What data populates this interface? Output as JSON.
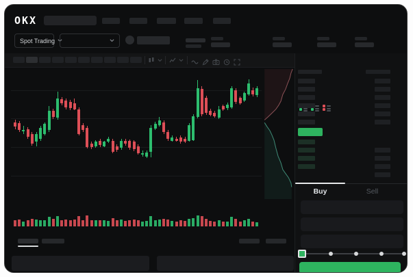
{
  "header": {
    "logo": "OKX"
  },
  "subheader": {
    "market_selector_label": "Spot Trading"
  },
  "trade_panel": {
    "tabs": [
      {
        "label": "Buy"
      },
      {
        "label": "Sell"
      }
    ]
  },
  "icons": {
    "toolbar": [
      "interval-candle-icon",
      "indicator-line-icon",
      "wave-icon",
      "draw-pencil-icon",
      "camera-icon",
      "clock-icon",
      "fullscreen-icon"
    ],
    "order_book_modes": [
      "book-all-icon",
      "book-bids-icon",
      "book-asks-icon"
    ],
    "other": [
      "chevron-down-icon",
      "slider-handle-icon"
    ]
  },
  "colors": {
    "up_green": "#2dbd6e",
    "down_red": "#dd4f57",
    "buy_button_green": "#2eb35f",
    "window_bg": "#0d0e0f",
    "depth_ask_line": "#8a5156",
    "depth_bid_line": "#3f8a76"
  },
  "chart_data": {
    "type": "candlestick",
    "title": "",
    "xlabel": "",
    "ylabel": "",
    "ylim": [
      0,
      100
    ],
    "grid": "faint-horizontal",
    "legend": "none",
    "candles_ohlc": [
      [
        58,
        60,
        52.5,
        54.5
      ],
      [
        57,
        59,
        50,
        51.5
      ],
      [
        50.5,
        55,
        48.5,
        51.5
      ],
      [
        52.5,
        54,
        44.5,
        46
      ],
      [
        48.5,
        50,
        39,
        40.5
      ],
      [
        42,
        50,
        38.5,
        48.5
      ],
      [
        44.5,
        55,
        43,
        53.5
      ],
      [
        48.5,
        58,
        47,
        56.5
      ],
      [
        51.5,
        71,
        50,
        67
      ],
      [
        67.5,
        69,
        60.5,
        62
      ],
      [
        61.5,
        83,
        60,
        77.5
      ],
      [
        76.5,
        78.5,
        71.5,
        73.5
      ],
      [
        75.5,
        77,
        68.5,
        70
      ],
      [
        74.5,
        76,
        68,
        69.5
      ],
      [
        73.5,
        77,
        67.5,
        68.5
      ],
      [
        68.5,
        70,
        47,
        48.5
      ],
      [
        55.5,
        57,
        50,
        51.5
      ],
      [
        53.5,
        55,
        36.5,
        38
      ],
      [
        40.5,
        42,
        36,
        38
      ],
      [
        38.5,
        43.5,
        37,
        42
      ],
      [
        43,
        44.5,
        38,
        39.5
      ],
      [
        38.5,
        43,
        37.5,
        42
      ],
      [
        42,
        46,
        41,
        44.5
      ],
      [
        43,
        44.5,
        32.5,
        34
      ],
      [
        38.5,
        40,
        34,
        35.5
      ],
      [
        37,
        44.5,
        35.5,
        43
      ],
      [
        43,
        44.5,
        39,
        40.5
      ],
      [
        43,
        44,
        35.5,
        37
      ],
      [
        42,
        43.5,
        34.5,
        36
      ],
      [
        38.5,
        40,
        31.5,
        33
      ],
      [
        31.5,
        35,
        30,
        33
      ],
      [
        30,
        35,
        29,
        33.5
      ],
      [
        34,
        55.5,
        29.5,
        53.5
      ],
      [
        52.5,
        58.5,
        51.5,
        56.5
      ],
      [
        55.5,
        62.5,
        54.5,
        59.5
      ],
      [
        58,
        59.5,
        48.5,
        50
      ],
      [
        50,
        51.5,
        43,
        44.5
      ],
      [
        43,
        47,
        42,
        45.5
      ],
      [
        44.5,
        46,
        42,
        43
      ],
      [
        45.5,
        47,
        40.5,
        42
      ],
      [
        44.5,
        46,
        41,
        42
      ],
      [
        43,
        57,
        42,
        55.5
      ],
      [
        43.5,
        64.5,
        42.5,
        63
      ],
      [
        62,
        92,
        61,
        85.5
      ],
      [
        85,
        87,
        63,
        64.5
      ],
      [
        78,
        79.5,
        64,
        65.5
      ],
      [
        67.5,
        69,
        62.5,
        64
      ],
      [
        65.5,
        67,
        61.5,
        63
      ],
      [
        61.5,
        71,
        60.5,
        68.5
      ],
      [
        71,
        72.5,
        67,
        68.5
      ],
      [
        69.5,
        74,
        68,
        72
      ],
      [
        70,
        87.5,
        69,
        85.5
      ],
      [
        84,
        85.5,
        73,
        74.5
      ],
      [
        78,
        79,
        72,
        73.5
      ],
      [
        75.5,
        83,
        74.5,
        81.5
      ],
      [
        80.5,
        93,
        79.5,
        89.5
      ],
      [
        84,
        86,
        79,
        80.5
      ],
      [
        80,
        87.5,
        78.5,
        85.5
      ]
    ],
    "volume": [
      0.5,
      0.55,
      0.3,
      0.45,
      0.6,
      0.55,
      0.5,
      0.5,
      0.85,
      0.6,
      0.9,
      0.5,
      0.55,
      0.5,
      0.55,
      0.95,
      0.5,
      1.0,
      0.45,
      0.5,
      0.45,
      0.5,
      0.4,
      0.7,
      0.45,
      0.55,
      0.4,
      0.5,
      0.55,
      0.5,
      0.35,
      0.4,
      0.9,
      0.5,
      0.55,
      0.6,
      0.55,
      0.4,
      0.35,
      0.45,
      0.4,
      0.65,
      0.7,
      1.0,
      0.9,
      0.6,
      0.4,
      0.35,
      0.5,
      0.3,
      0.35,
      0.85,
      0.6,
      0.35,
      0.45,
      0.6,
      0.35,
      0.25
    ],
    "depth": {
      "asks": [
        [
          96,
          3
        ],
        [
          91,
          6
        ],
        [
          87,
          10
        ],
        [
          80,
          14
        ],
        [
          74,
          18
        ],
        [
          65,
          22
        ],
        [
          59,
          27
        ],
        [
          52,
          30
        ],
        [
          43,
          33
        ],
        [
          30,
          36
        ],
        [
          17,
          39
        ],
        [
          7,
          41
        ]
      ],
      "bids": [
        [
          7,
          43
        ],
        [
          15,
          46
        ],
        [
          24,
          49
        ],
        [
          30,
          52
        ],
        [
          37,
          56
        ],
        [
          43,
          62
        ],
        [
          50,
          68
        ],
        [
          59,
          73
        ],
        [
          65,
          78
        ],
        [
          74,
          81
        ],
        [
          83,
          84
        ],
        [
          91,
          88
        ],
        [
          93,
          91
        ]
      ]
    }
  }
}
